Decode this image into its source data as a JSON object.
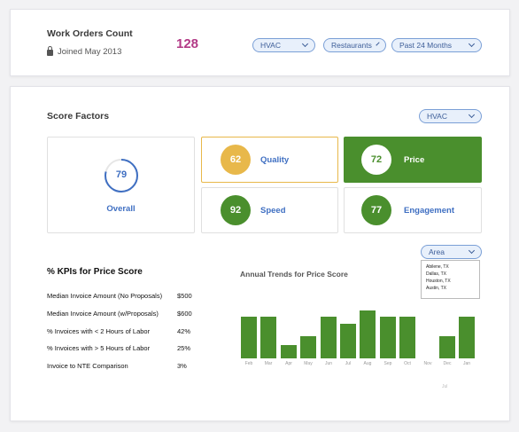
{
  "header": {
    "title": "Work Orders Count",
    "joined": "Joined May 2013",
    "count": "128",
    "filters": [
      "HVAC",
      "Restaurants",
      "Past 24 Months"
    ]
  },
  "score": {
    "title": "Score Factors",
    "filter": "HVAC",
    "overall": {
      "value": "79",
      "label": "Overall"
    },
    "tiles": [
      {
        "value": "62",
        "label": "Quality",
        "color": "#e8b84a"
      },
      {
        "value": "72",
        "label": "Price",
        "color": "#4a8f2d"
      },
      {
        "value": "92",
        "label": "Speed",
        "color": "#4a8f2d"
      },
      {
        "value": "77",
        "label": "Engagement",
        "color": "#4a8f2d"
      }
    ]
  },
  "kpis": {
    "title": "% KPIs for Price Score",
    "rows": [
      {
        "label": "Median Invoice Amount (No Proposals)",
        "value": "$500"
      },
      {
        "label": "Median Invoice Amount (w/Proposals)",
        "value": "$600"
      },
      {
        "label": "% Invoices with < 2 Hours of Labor",
        "value": "42%"
      },
      {
        "label": "% Invoices with > 5 Hours of Labor",
        "value": "25%"
      },
      {
        "label": "Invoice to NTE Comparison",
        "value": "3%"
      }
    ]
  },
  "trends": {
    "title": "Annual Trends for Price Score",
    "area_select": "Area",
    "area_options": [
      "Abilene, TX",
      "Dallas, TX",
      "Houston, TX",
      "Austin, TX"
    ],
    "footer": "Jul"
  },
  "chart_data": {
    "type": "bar",
    "categories": [
      "Feb",
      "Mar",
      "Apr",
      "May",
      "Jun",
      "Jul",
      "Aug",
      "Sep",
      "Oct",
      "Nov",
      "Dec",
      "Jan"
    ],
    "values": [
      42,
      42,
      13,
      22,
      42,
      35,
      48,
      42,
      42,
      0,
      22,
      42
    ],
    "ylim": [
      0,
      50
    ]
  },
  "colors": {
    "accent_green": "#4a8f2d",
    "accent_yellow": "#e8b84a",
    "count_magenta": "#b23a86",
    "link_blue": "#3f6fc2"
  }
}
